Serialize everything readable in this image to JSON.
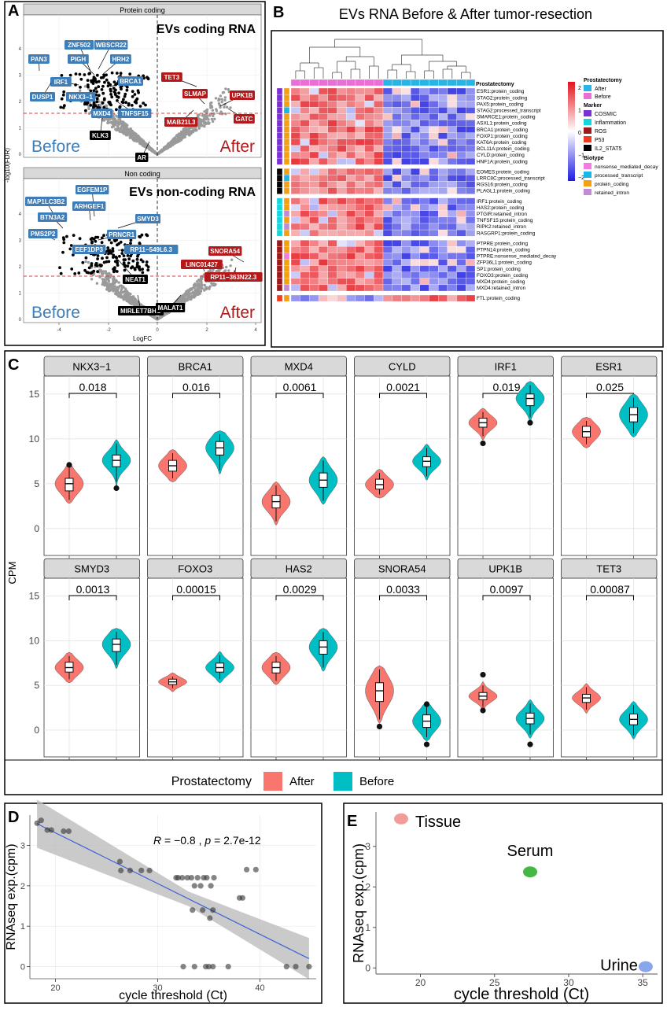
{
  "panel_letters": {
    "a": "A",
    "b": "B",
    "c": "C",
    "d": "D",
    "e": "E"
  },
  "colors": {
    "after": "#F8766D",
    "before": "#00BFC4",
    "volcano_gray": "#9a9a9a",
    "volcano_black": "#000000",
    "label_blue": "#3e7db7",
    "label_red": "#b3191a",
    "label_black": "#000000",
    "fdr_line": "#e8373a",
    "heat_high": "#e3141c",
    "heat_low": "#1d1de0",
    "col_after": "#29b4e8",
    "col_before": "#e96ed6",
    "marker_cosmic": "#7b2fd4",
    "marker_inflammation": "#14d6dc",
    "marker_ros": "#9c1a1a",
    "marker_p53": "#f03b21",
    "marker_il2": "#000000",
    "bio_nmd": "#f27be0",
    "bio_processed": "#19b6e8",
    "bio_protein": "#f5a011",
    "bio_retained": "#c28bd8"
  },
  "panel_a": {
    "title_protein": "Protein coding",
    "title_noncoding": "Non coding",
    "heading_coding": "EVs coding RNA",
    "heading_noncoding": "EVs non-coding RNA",
    "before_text": "Before",
    "after_text": "After",
    "ylabel": "-log10(FDR)",
    "xlabel": "LogFC",
    "top_yticks": [
      "0",
      "1",
      "2",
      "3",
      "4"
    ],
    "bottom_yticks": [
      "0",
      "1",
      "2",
      "3",
      "4"
    ],
    "xticks": [
      "-4",
      "-2",
      "0",
      "2",
      "4"
    ],
    "top_labels": [
      {
        "text": "ZNF502",
        "kind": "blue"
      },
      {
        "text": "WBSCR22",
        "kind": "blue"
      },
      {
        "text": "PAN3",
        "kind": "blue"
      },
      {
        "text": "PIGH",
        "kind": "blue"
      },
      {
        "text": "HRH2",
        "kind": "blue"
      },
      {
        "text": "IRF1",
        "kind": "blue"
      },
      {
        "text": "BRCA1",
        "kind": "blue"
      },
      {
        "text": "DUSP1",
        "kind": "blue"
      },
      {
        "text": "NKX3−1",
        "kind": "blue"
      },
      {
        "text": "MXD4",
        "kind": "blue"
      },
      {
        "text": "TNFSF15",
        "kind": "blue"
      },
      {
        "text": "TET3",
        "kind": "red"
      },
      {
        "text": "SLMAP",
        "kind": "red"
      },
      {
        "text": "UPK1B",
        "kind": "red"
      },
      {
        "text": "GATC",
        "kind": "red"
      },
      {
        "text": "MAB21L3",
        "kind": "red"
      },
      {
        "text": "KLK3",
        "kind": "black"
      },
      {
        "text": "AR",
        "kind": "black"
      }
    ],
    "bottom_labels": [
      {
        "text": "EGFEM1P",
        "kind": "blue"
      },
      {
        "text": "MAP1LC3B2",
        "kind": "blue"
      },
      {
        "text": "ARHGEF1",
        "kind": "blue"
      },
      {
        "text": "BTN3A2",
        "kind": "blue"
      },
      {
        "text": "SMYD3",
        "kind": "blue"
      },
      {
        "text": "PMS2P2",
        "kind": "blue"
      },
      {
        "text": "PRNCR1",
        "kind": "blue"
      },
      {
        "text": "EEF1DP3",
        "kind": "blue"
      },
      {
        "text": "RP11−549L6.3",
        "kind": "blue"
      },
      {
        "text": "SNORA54",
        "kind": "red"
      },
      {
        "text": "LINC01427",
        "kind": "red"
      },
      {
        "text": "RP11−363N22.3",
        "kind": "red"
      },
      {
        "text": "NEAT1",
        "kind": "black"
      },
      {
        "text": "MIRLET7BHG",
        "kind": "black"
      },
      {
        "text": "MALAT1",
        "kind": "black"
      }
    ]
  },
  "panel_b": {
    "title": "EVs RNA Before & After tumor-resection",
    "col_anno_label": "Prostatectomy",
    "col_groups": [
      "before",
      "before",
      "before",
      "before",
      "before",
      "before",
      "before",
      "before",
      "before",
      "before",
      "after",
      "after",
      "after",
      "after",
      "after",
      "after",
      "after",
      "after",
      "after",
      "after"
    ],
    "rows": [
      {
        "label": "ESR1:protein_coding",
        "marker": "cosmic",
        "biotype": "protein",
        "block": 0,
        "dir": 1
      },
      {
        "label": "STAG2:protein_coding",
        "marker": "cosmic",
        "biotype": "protein",
        "block": 0,
        "dir": 1
      },
      {
        "label": "PAX5:protein_coding",
        "marker": "cosmic",
        "biotype": "protein",
        "block": 0,
        "dir": 1
      },
      {
        "label": "STAG2:processed_transcript",
        "marker": "cosmic",
        "biotype": "processed",
        "block": 0,
        "dir": 1
      },
      {
        "label": "SMARCE1:protein_coding",
        "marker": "cosmic",
        "biotype": "protein",
        "block": 0,
        "dir": 1
      },
      {
        "label": "ASXL1:protein_coding",
        "marker": "cosmic",
        "biotype": "protein",
        "block": 0,
        "dir": 1
      },
      {
        "label": "BRCA1:protein_coding",
        "marker": "cosmic",
        "biotype": "protein",
        "block": 0,
        "dir": 1
      },
      {
        "label": "FOXP1:protein_coding",
        "marker": "cosmic",
        "biotype": "protein",
        "block": 0,
        "dir": 1
      },
      {
        "label": "KAT6A:protein_coding",
        "marker": "cosmic",
        "biotype": "protein",
        "block": 0,
        "dir": 1
      },
      {
        "label": "BCL11A:protein_coding",
        "marker": "cosmic",
        "biotype": "protein",
        "block": 0,
        "dir": 1
      },
      {
        "label": "CYLD:protein_coding",
        "marker": "cosmic",
        "biotype": "protein",
        "block": 0,
        "dir": 1
      },
      {
        "label": "HNF1A:protein_coding",
        "marker": "cosmic",
        "biotype": "protein",
        "block": 0,
        "dir": 1
      },
      {
        "label": "EOMES:protein_coding",
        "marker": "il2",
        "biotype": "protein",
        "block": 1,
        "dir": 1
      },
      {
        "label": "LRRC8C:processed_transcript",
        "marker": "il2",
        "biotype": "processed",
        "block": 1,
        "dir": 1
      },
      {
        "label": "RGS16:protein_coding",
        "marker": "il2",
        "biotype": "protein",
        "block": 1,
        "dir": 1
      },
      {
        "label": "PLAGL1:protein_coding",
        "marker": "il2",
        "biotype": "protein",
        "block": 1,
        "dir": 1
      },
      {
        "label": "IRF1:protein_coding",
        "marker": "inflammation",
        "biotype": "protein",
        "block": 2,
        "dir": 1
      },
      {
        "label": "HAS2:protein_coding",
        "marker": "inflammation",
        "biotype": "protein",
        "block": 2,
        "dir": 1
      },
      {
        "label": "PTGIR:retained_intron",
        "marker": "inflammation",
        "biotype": "retained",
        "block": 2,
        "dir": 1
      },
      {
        "label": "TNFSF15:protein_coding",
        "marker": "inflammation",
        "biotype": "protein",
        "block": 2,
        "dir": 1
      },
      {
        "label": "RIPK2:retained_intron",
        "marker": "inflammation",
        "biotype": "retained",
        "block": 2,
        "dir": 1
      },
      {
        "label": "RASGRP1:protein_coding",
        "marker": "inflammation",
        "biotype": "protein",
        "block": 2,
        "dir": 1
      },
      {
        "label": "PTPRE:protein_coding",
        "marker": "ros",
        "biotype": "protein",
        "block": 3,
        "dir": 1
      },
      {
        "label": "PTPN14:protein_coding",
        "marker": "ros",
        "biotype": "protein",
        "block": 3,
        "dir": 1
      },
      {
        "label": "PTPRE:nonsense_mediated_decay",
        "marker": "ros",
        "biotype": "nmd",
        "block": 3,
        "dir": 1
      },
      {
        "label": "ZFP36L1:protein_coding",
        "marker": "ros",
        "biotype": "protein",
        "block": 3,
        "dir": 1
      },
      {
        "label": "SP1:protein_coding",
        "marker": "ros",
        "biotype": "protein",
        "block": 3,
        "dir": 1
      },
      {
        "label": "FOXO3:protein_coding",
        "marker": "ros",
        "biotype": "protein",
        "block": 3,
        "dir": 1
      },
      {
        "label": "MXD4:protein_coding",
        "marker": "ros",
        "biotype": "protein",
        "block": 3,
        "dir": 1
      },
      {
        "label": "MXD4:retained_intron",
        "marker": "ros",
        "biotype": "retained",
        "block": 3,
        "dir": 1
      },
      {
        "label": "FTL:protein_coding",
        "marker": "p53",
        "biotype": "protein",
        "block": 4,
        "dir": -1
      }
    ],
    "legend": {
      "scale_ticks": [
        "2",
        "1",
        "0",
        "−1",
        "−2"
      ],
      "prostatectomy_title": "Prostatectomy",
      "prostatectomy_items": [
        {
          "label": "After",
          "color": "#29b4e8"
        },
        {
          "label": "Before",
          "color": "#e96ed6"
        }
      ],
      "marker_title": "Marker",
      "marker_items": [
        {
          "label": "COSMIC",
          "color": "#7b2fd4"
        },
        {
          "label": "Inflammation",
          "color": "#14d6dc"
        },
        {
          "label": "ROS",
          "color": "#9c1a1a"
        },
        {
          "label": "P53",
          "color": "#f03b21"
        },
        {
          "label": "IL2_STAT5",
          "color": "#000000"
        }
      ],
      "biotype_title": "Biotype",
      "biotype_items": [
        {
          "label": "nonsense_mediated_decay",
          "color": "#f27be0"
        },
        {
          "label": "processed_transcript",
          "color": "#19b6e8"
        },
        {
          "label": "protein_coding",
          "color": "#f5a011"
        },
        {
          "label": "retained_intron",
          "color": "#c28bd8"
        }
      ]
    }
  },
  "chart_data": [
    {
      "type": "violin",
      "ylabel": "CPM",
      "ylim": [
        -3,
        17
      ],
      "yticks": [
        "0",
        "5",
        "10",
        "15"
      ],
      "legend_title": "Prostatectomy",
      "legend": [
        {
          "label": "After",
          "color": "#F8766D"
        },
        {
          "label": "Before",
          "color": "#00BFC4"
        }
      ],
      "panels": [
        {
          "gene": "NKX3−1",
          "p": "0.018",
          "after": {
            "median": 5.0,
            "q1": 4.2,
            "q3": 5.6,
            "min": 3.2,
            "max": 6.8,
            "outliers": [
              7.1
            ]
          },
          "before": {
            "median": 7.6,
            "q1": 6.9,
            "q3": 8.2,
            "min": 5.2,
            "max": 9.5,
            "outliers": [
              4.5
            ]
          }
        },
        {
          "gene": "BRCA1",
          "p": "0.016",
          "after": {
            "median": 7.0,
            "q1": 6.4,
            "q3": 7.6,
            "min": 5.6,
            "max": 8.4,
            "outliers": []
          },
          "before": {
            "median": 9.0,
            "q1": 8.2,
            "q3": 9.7,
            "min": 6.5,
            "max": 10.5,
            "outliers": []
          }
        },
        {
          "gene": "MXD4",
          "p": "0.0061",
          "after": {
            "median": 3.0,
            "q1": 2.3,
            "q3": 3.7,
            "min": 0.8,
            "max": 4.8,
            "outliers": []
          },
          "before": {
            "median": 5.4,
            "q1": 4.6,
            "q3": 6.2,
            "min": 3.1,
            "max": 7.6,
            "outliers": []
          }
        },
        {
          "gene": "CYLD",
          "p": "0.0021",
          "after": {
            "median": 4.9,
            "q1": 4.4,
            "q3": 5.5,
            "min": 3.8,
            "max": 6.2,
            "outliers": []
          },
          "before": {
            "median": 7.5,
            "q1": 6.9,
            "q3": 8.0,
            "min": 5.8,
            "max": 9.0,
            "outliers": []
          }
        },
        {
          "gene": "IRF1",
          "p": "0.019",
          "after": {
            "median": 11.8,
            "q1": 11.3,
            "q3": 12.3,
            "min": 10.3,
            "max": 13.0,
            "outliers": [
              9.5
            ]
          },
          "before": {
            "median": 14.5,
            "q1": 13.7,
            "q3": 15.0,
            "min": 12.4,
            "max": 16.0,
            "outliers": [
              11.8
            ]
          }
        },
        {
          "gene": "ESR1",
          "p": "0.025",
          "after": {
            "median": 10.8,
            "q1": 10.2,
            "q3": 11.4,
            "min": 9.4,
            "max": 12.0,
            "outliers": []
          },
          "before": {
            "median": 12.7,
            "q1": 11.9,
            "q3": 13.5,
            "min": 10.6,
            "max": 14.6,
            "outliers": []
          }
        },
        {
          "gene": "SMYD3",
          "p": "0.0013",
          "after": {
            "median": 7.0,
            "q1": 6.5,
            "q3": 7.6,
            "min": 5.7,
            "max": 8.3,
            "outliers": []
          },
          "before": {
            "median": 9.6,
            "q1": 8.8,
            "q3": 10.2,
            "min": 7.3,
            "max": 11.0,
            "outliers": []
          }
        },
        {
          "gene": "FOXO3",
          "p": "0.00015",
          "after": {
            "median": 5.4,
            "q1": 5.1,
            "q3": 5.7,
            "min": 4.7,
            "max": 6.0,
            "outliers": []
          },
          "before": {
            "median": 7.0,
            "q1": 6.5,
            "q3": 7.5,
            "min": 5.7,
            "max": 8.4,
            "outliers": []
          }
        },
        {
          "gene": "HAS2",
          "p": "0.0029",
          "after": {
            "median": 7.0,
            "q1": 6.4,
            "q3": 7.6,
            "min": 5.5,
            "max": 8.3,
            "outliers": []
          },
          "before": {
            "median": 9.3,
            "q1": 8.5,
            "q3": 10.0,
            "min": 7.0,
            "max": 11.0,
            "outliers": []
          }
        },
        {
          "gene": "SNORA54",
          "p": "0.0033",
          "after": {
            "median": 4.4,
            "q1": 3.2,
            "q3": 5.3,
            "min": 1.2,
            "max": 6.8,
            "outliers": [
              0.4
            ]
          },
          "before": {
            "median": 1.0,
            "q1": 0.3,
            "q3": 1.7,
            "min": -0.8,
            "max": 2.6,
            "outliers": [
              2.9,
              -1.6
            ]
          }
        },
        {
          "gene": "UPK1B",
          "p": "0.0097",
          "after": {
            "median": 3.8,
            "q1": 3.4,
            "q3": 4.2,
            "min": 2.6,
            "max": 5.0,
            "outliers": [
              6.2,
              2.2
            ]
          },
          "before": {
            "median": 1.3,
            "q1": 0.7,
            "q3": 1.9,
            "min": -0.5,
            "max": 3.0,
            "outliers": [
              -1.6
            ]
          }
        },
        {
          "gene": "TET3",
          "p": "0.00087",
          "after": {
            "median": 3.6,
            "q1": 3.1,
            "q3": 4.0,
            "min": 2.3,
            "max": 4.8,
            "outliers": []
          },
          "before": {
            "median": 1.2,
            "q1": 0.6,
            "q3": 1.8,
            "min": -0.6,
            "max": 2.8,
            "outliers": []
          }
        }
      ]
    },
    {
      "type": "scatter",
      "xlabel": "cycle threshold (Ct)",
      "ylabel": "RNAseq exp.(cpm)",
      "annotation": "R = −0.8 , p = 2.7e-12",
      "annotation_r": "R",
      "annotation_rest": " = −0.8 , ",
      "annotation_p": "p",
      "annotation_end": " = 2.7e-12",
      "xlim": [
        17.5,
        45.5
      ],
      "ylim": [
        -0.3,
        3.75
      ],
      "xticks": [
        20,
        30,
        40
      ],
      "yticks": [
        0,
        1,
        2,
        3
      ],
      "fit": {
        "slope": -0.1255,
        "intercept": 5.82
      },
      "points": [
        [
          18.2,
          3.55
        ],
        [
          18.6,
          3.62
        ],
        [
          19.2,
          3.38
        ],
        [
          19.6,
          3.38
        ],
        [
          20.8,
          3.35
        ],
        [
          21.3,
          3.35
        ],
        [
          26.3,
          2.6
        ],
        [
          26.4,
          2.38
        ],
        [
          27.3,
          2.38
        ],
        [
          28.4,
          2.38
        ],
        [
          29.2,
          2.38
        ],
        [
          31.8,
          2.2
        ],
        [
          32.0,
          2.2
        ],
        [
          32.4,
          2.2
        ],
        [
          32.9,
          2.2
        ],
        [
          33.3,
          2.2
        ],
        [
          33.6,
          2.0
        ],
        [
          33.9,
          2.2
        ],
        [
          34.2,
          2.0
        ],
        [
          34.5,
          2.2
        ],
        [
          34.8,
          2.2
        ],
        [
          35.2,
          2.0
        ],
        [
          35.5,
          2.2
        ],
        [
          33.4,
          1.4
        ],
        [
          34.4,
          1.4
        ],
        [
          35.1,
          1.2
        ],
        [
          35.4,
          1.4
        ],
        [
          38.0,
          1.7
        ],
        [
          38.3,
          1.7
        ],
        [
          38.7,
          2.4
        ],
        [
          39.6,
          2.4
        ],
        [
          32.5,
          0.0
        ],
        [
          33.6,
          0.0
        ],
        [
          34.7,
          0.0
        ],
        [
          35.0,
          0.0
        ],
        [
          35.4,
          0.0
        ],
        [
          36.9,
          0.0
        ],
        [
          42.6,
          0.0
        ],
        [
          43.5,
          0.0
        ],
        [
          44.8,
          0.0
        ]
      ]
    },
    {
      "type": "scatter",
      "xlabel": "cycle threshold (Ct)",
      "ylabel": "RNAseq exp.(cpm)",
      "xlim": [
        17.0,
        36.0
      ],
      "ylim": [
        -0.15,
        3.85
      ],
      "xticks": [
        20,
        25,
        30,
        35
      ],
      "yticks": [
        0,
        1,
        2,
        3
      ],
      "points": [
        {
          "label": "Tissue",
          "x": 18.7,
          "y": 3.68,
          "color": "#f09090"
        },
        {
          "label": "Serum",
          "x": 27.4,
          "y": 2.37,
          "color": "#30b030"
        },
        {
          "label": "Urine",
          "x": 35.2,
          "y": 0.03,
          "color": "#7a9de8"
        }
      ]
    }
  ]
}
